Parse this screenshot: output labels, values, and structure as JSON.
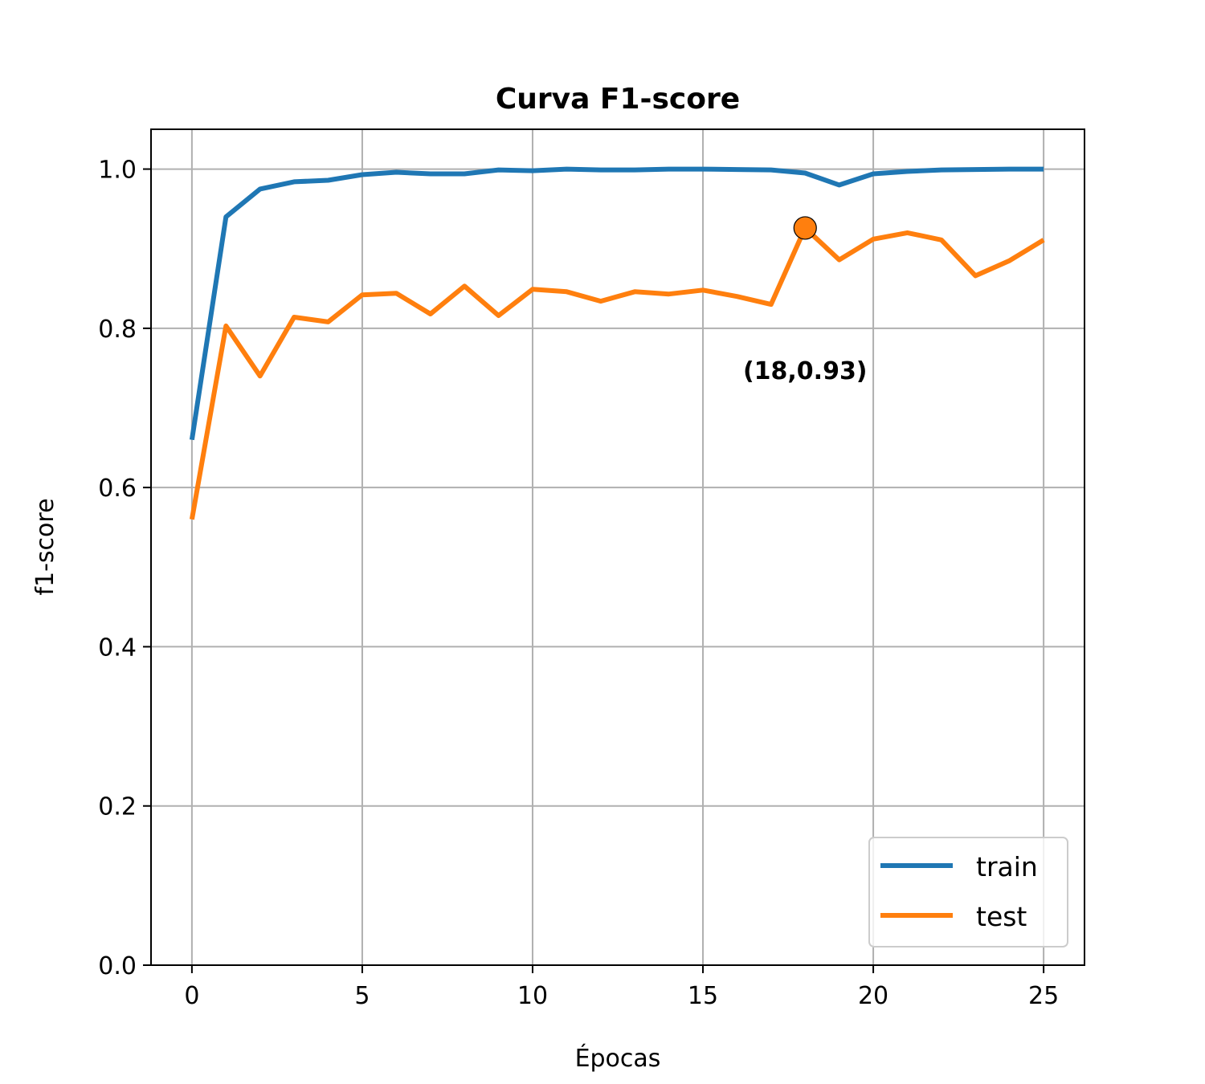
{
  "chart_data": {
    "type": "line",
    "title": "Curva F1-score",
    "xlabel": "Épocas",
    "ylabel": "f1-score",
    "xlim": [
      -1.2,
      26.2
    ],
    "ylim": [
      0.0,
      1.05
    ],
    "xticks": [
      0,
      5,
      10,
      15,
      20,
      25
    ],
    "yticks": [
      0.0,
      0.2,
      0.4,
      0.6,
      0.8,
      1.0
    ],
    "xtick_labels": [
      "0",
      "5",
      "10",
      "15",
      "20",
      "25"
    ],
    "ytick_labels": [
      "0.0",
      "0.2",
      "0.4",
      "0.6",
      "0.8",
      "1.0"
    ],
    "grid": true,
    "legend_position": "lower-right",
    "x": [
      0,
      1,
      2,
      3,
      4,
      5,
      6,
      7,
      8,
      9,
      10,
      11,
      12,
      13,
      14,
      15,
      16,
      17,
      18,
      19,
      20,
      21,
      22,
      23,
      24,
      25
    ],
    "series": [
      {
        "name": "train",
        "color": "#1f77b4",
        "values": [
          0.66,
          0.94,
          0.975,
          0.984,
          0.986,
          0.993,
          0.996,
          0.994,
          0.994,
          0.999,
          0.998,
          1.0,
          0.999,
          0.999,
          1.0,
          1.0,
          0.9995,
          0.999,
          0.995,
          0.98,
          0.994,
          0.997,
          0.999,
          0.9995,
          1.0,
          1.0
        ]
      },
      {
        "name": "test",
        "color": "#ff7f0e",
        "values": [
          0.56,
          0.803,
          0.74,
          0.814,
          0.808,
          0.842,
          0.844,
          0.818,
          0.853,
          0.816,
          0.849,
          0.846,
          0.834,
          0.846,
          0.843,
          0.848,
          0.84,
          0.83,
          0.926,
          0.886,
          0.912,
          0.92,
          0.911,
          0.866,
          0.885,
          0.911
        ]
      }
    ],
    "annotation": {
      "text": "(18,0.93)",
      "point_x": 18,
      "point_y": 0.926,
      "marker_color": "#ff7f0e"
    }
  }
}
